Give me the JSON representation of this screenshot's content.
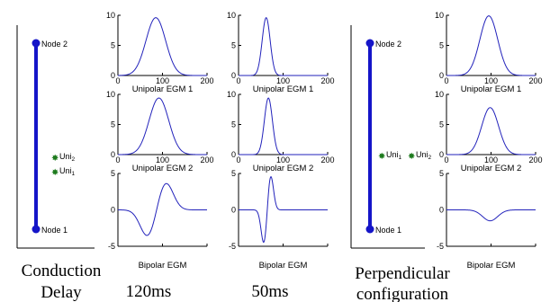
{
  "captions": {
    "conduction_line1": "Conduction",
    "conduction_line2": "Delay",
    "col1": "120ms",
    "col2": "50ms",
    "perp_line1": "Perpendicular",
    "perp_line2": "configuration"
  },
  "schematic": {
    "node_top": "Node 2",
    "node_bottom": "Node 1",
    "uni_prefix": "Uni",
    "uni_sub_2": "2",
    "uni_sub_1": "1",
    "line_color": "#1515c8",
    "electrode_color": "#1d7a1d"
  },
  "plot_titles": {
    "uni1": "Unipolar EGM 1",
    "uni2": "Unipolar EGM 2",
    "bipolar": "Bipolar EGM"
  },
  "chart_data": {
    "type": "line",
    "line_color": "#2222bb",
    "x_ticks": [
      "0",
      "100",
      "200"
    ],
    "uni_y_ticks": [
      "0",
      "5",
      "10"
    ],
    "bip_y_ticks": [
      "-5",
      "0",
      "5"
    ],
    "uni_xlim": [
      0,
      200
    ],
    "uni_ylim": [
      0,
      10
    ],
    "bip_xlim": [
      0,
      200
    ],
    "bip_ylim": [
      -5,
      5
    ],
    "panels": [
      {
        "id": "delay120_uni1",
        "kind": "gauss",
        "mu": 85,
        "sigma": 22,
        "amp": 9.6
      },
      {
        "id": "delay120_uni2",
        "kind": "gauss",
        "mu": 92,
        "sigma": 22,
        "amp": 9.4
      },
      {
        "id": "delay120_bip",
        "kind": "bip",
        "min_x": 67,
        "min_y": -3.7,
        "max_x": 107,
        "max_y": 3.8
      },
      {
        "id": "delay50_uni1",
        "kind": "gauss",
        "mu": 62,
        "sigma": 9,
        "amp": 9.6
      },
      {
        "id": "delay50_uni2",
        "kind": "gauss",
        "mu": 67,
        "sigma": 9,
        "amp": 9.4
      },
      {
        "id": "delay50_bip",
        "kind": "bip",
        "min_x": 57,
        "min_y": -4.7,
        "max_x": 72,
        "max_y": 4.8
      },
      {
        "id": "perp_uni1",
        "kind": "gauss",
        "mu": 95,
        "sigma": 20,
        "amp": 9.9
      },
      {
        "id": "perp_uni2",
        "kind": "gauss",
        "mu": 98,
        "sigma": 19,
        "amp": 7.8
      },
      {
        "id": "perp_bip",
        "kind": "dip",
        "mu": 98,
        "sigma": 17,
        "amp": -1.5
      }
    ]
  }
}
